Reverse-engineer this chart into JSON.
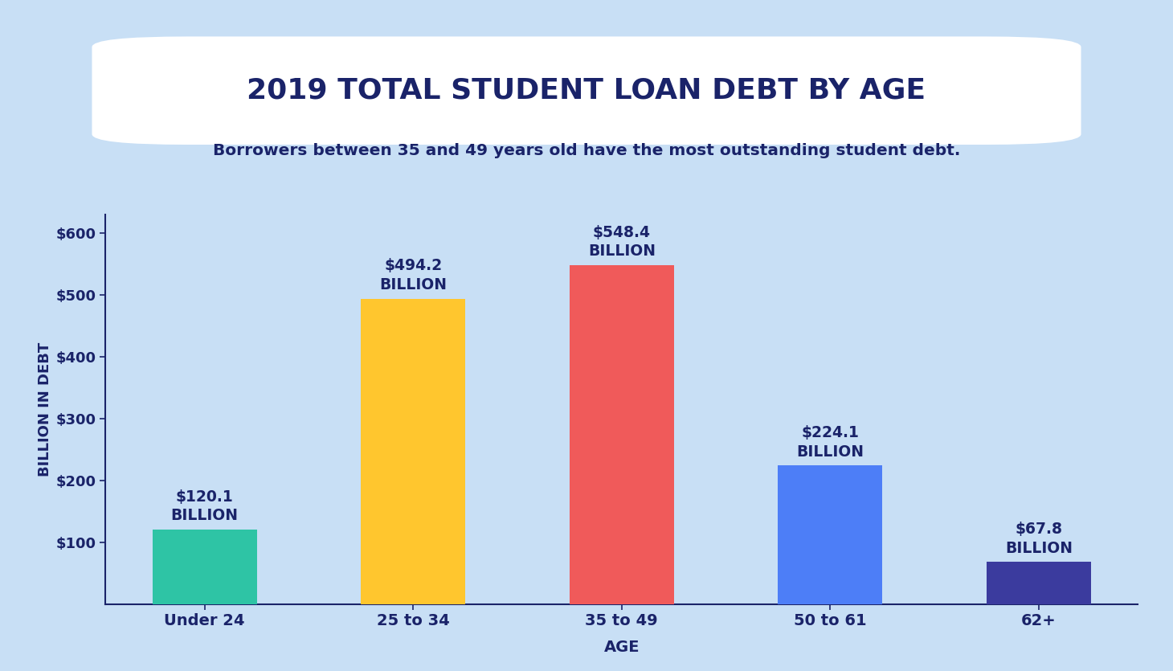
{
  "title": "2019 TOTAL STUDENT LOAN DEBT BY AGE",
  "subtitle": "Borrowers between 35 and 49 years old have the most outstanding student debt.",
  "categories": [
    "Under 24",
    "25 to 34",
    "35 to 49",
    "50 to 61",
    "62+"
  ],
  "values": [
    120.1,
    494.2,
    548.4,
    224.1,
    67.8
  ],
  "labels": [
    "$120.1\nBILLION",
    "$494.2\nBILLION",
    "$548.4\nBILLION",
    "$224.1\nBILLION",
    "$67.8\nBILLION"
  ],
  "bar_colors": [
    "#2ec4a5",
    "#ffc62e",
    "#f05a5a",
    "#4d7ef7",
    "#3b3b9e"
  ],
  "background_color": "#c8dff5",
  "title_box_color": "#ffffff",
  "text_color": "#1a2369",
  "ylabel": "BILLION IN DEBT",
  "xlabel": "AGE",
  "ylim": [
    0,
    630
  ],
  "yticks": [
    100,
    200,
    300,
    400,
    500,
    600
  ],
  "ytick_labels": [
    "$100",
    "$200",
    "$300",
    "$400",
    "$500",
    "$600"
  ]
}
